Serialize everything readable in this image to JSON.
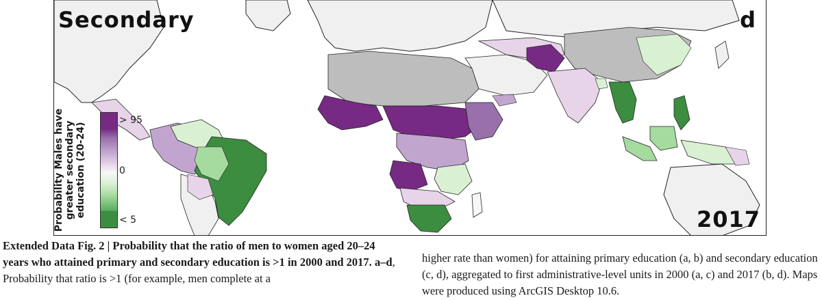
{
  "map": {
    "panel_title": "Secondary",
    "panel_letter": "d",
    "year": "2017",
    "colors": {
      "ocean": "#ffffff",
      "no_data": "#bdbdbd",
      "non_study": "#f0f0f0",
      "strong_male": "#762a83",
      "mid_male": "#c2a5cf",
      "neutral": "#f7f7f7",
      "mid_female": "#a6dba0",
      "strong_female": "#3c8d3f"
    }
  },
  "legend": {
    "title": "Probability Males have\ngreater secondary\neducation (20-24)",
    "tick_high": "> 95",
    "tick_mid": "0",
    "tick_low": "< 5"
  },
  "caption": {
    "fig_label": "Extended Data Fig. 2 | ",
    "bold_title": "Probability that the ratio of men to women aged 20–24 years who attained primary and secondary education is >1 in 2000 and 2017. ",
    "panels": "a–d",
    "body_left": ", Probability that ratio is >1 (for example, men complete at a",
    "body_right": "higher rate than women) for attaining primary education (a, b) and secondary education (c, d), aggregated to first administrative-level units in 2000 (a, c) and 2017 (b, d). Maps were produced using ArcGIS Desktop 10.6."
  }
}
